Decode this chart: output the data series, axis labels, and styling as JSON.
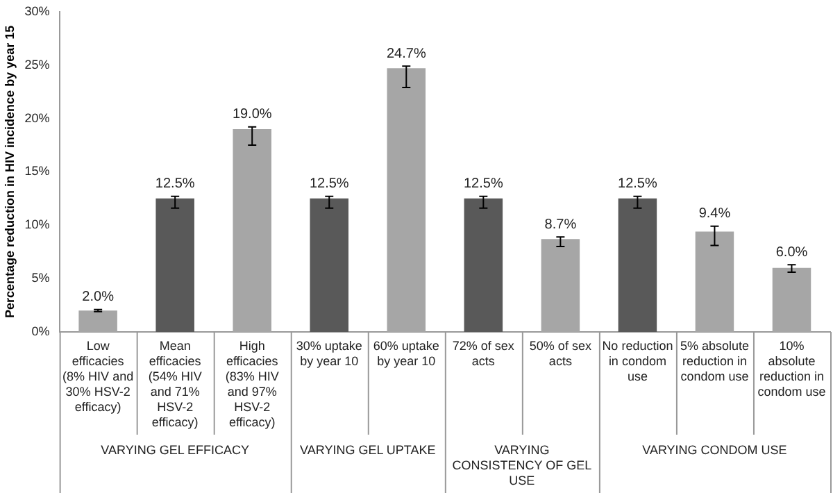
{
  "chart_data": {
    "type": "bar",
    "ylabel": "Percentage reduction in HIV incidence by year 15",
    "categories": [
      "Low efficacies (8% HIV and 30% HSV-2 efficacy)",
      "Mean efficacies (54% HIV and 71% HSV-2 efficacy)",
      "High efficacies (83% HIV and 97% HSV-2 efficacy)",
      "30% uptake by year 10",
      "60% uptake by year 10",
      "72% of sex acts",
      "50% of sex acts",
      "No reduction in condom use",
      "5% absolute reduction in condom use",
      "10% absolute reduction in condom use"
    ],
    "values": [
      2.0,
      12.5,
      19.0,
      12.5,
      24.7,
      12.5,
      8.7,
      12.5,
      9.4,
      6.0
    ],
    "colors": [
      "#a6a6a6",
      "#595959",
      "#a6a6a6",
      "#595959",
      "#a6a6a6",
      "#595959",
      "#a6a6a6",
      "#595959",
      "#a6a6a6",
      "#a6a6a6"
    ],
    "errors": [
      [
        1.9,
        2.1
      ],
      [
        11.6,
        12.7
      ],
      [
        17.5,
        19.2
      ],
      [
        11.6,
        12.7
      ],
      [
        22.9,
        24.9
      ],
      [
        11.6,
        12.7
      ],
      [
        8.0,
        8.9
      ],
      [
        11.6,
        12.7
      ],
      [
        8.1,
        9.9
      ],
      [
        5.6,
        6.3
      ]
    ],
    "value_labels": [
      "2.0%",
      "12.5%",
      "19.0%",
      "12.5%",
      "24.7%",
      "12.5%",
      "8.7%",
      "12.5%",
      "9.4%",
      "6.0%"
    ],
    "ylim": [
      0,
      30
    ],
    "yticks": [
      {
        "value": 0,
        "label": "0%"
      },
      {
        "value": 5,
        "label": "5%"
      },
      {
        "value": 10,
        "label": "10%"
      },
      {
        "value": 15,
        "label": "15%"
      },
      {
        "value": 20,
        "label": "20%"
      },
      {
        "value": 25,
        "label": "25%"
      },
      {
        "value": 30,
        "label": "30%"
      }
    ],
    "annotations": [
      "VARYING GEL EFFICACY",
      "VARYING GEL UPTAKE",
      "VARYING CONSISTENCY OF GEL USE",
      "VARYING CONDOM USE"
    ],
    "grid": false,
    "legend": false
  }
}
